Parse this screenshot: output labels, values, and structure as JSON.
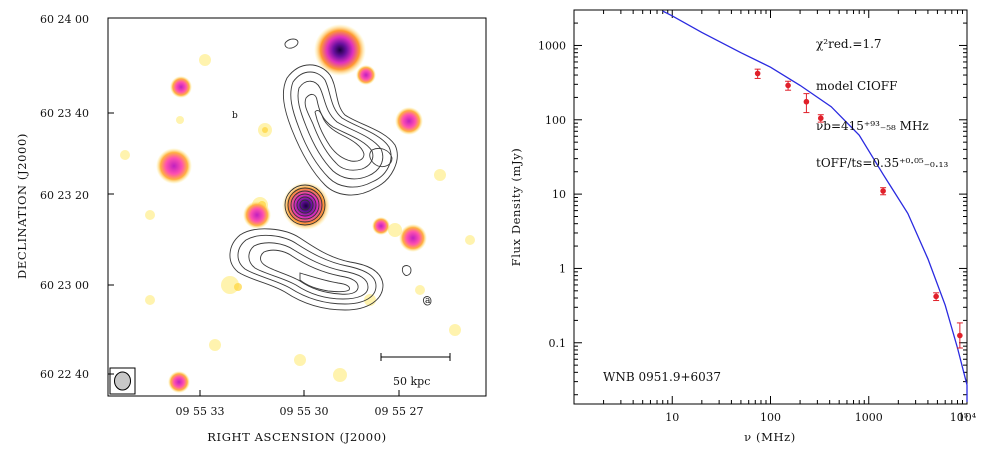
{
  "left_panel": {
    "xlabel": "RIGHT ASCENSION  (J2000)",
    "ylabel": "DECLINATION  (J2000)",
    "x_ticks": [
      "09 55 33",
      "09 55 30",
      "09 55 27"
    ],
    "y_ticks": [
      "60 24 00",
      "60 23 40",
      "60 23 20",
      "60 23 00",
      "60 22 40"
    ],
    "scalebar_label": "50 kpc",
    "component_labels": [
      "b",
      "a"
    ]
  },
  "chart_data": {
    "type": "scatter",
    "xscale": "log",
    "yscale": "log",
    "xlim": [
      1,
      10000
    ],
    "ylim": [
      0.015,
      3000
    ],
    "xlabel": "ν (MHz)",
    "ylabel": "Flux Density  (mJy)",
    "x_ticks": [
      "10",
      "100",
      "1000",
      "10⁴",
      "10⁵"
    ],
    "y_ticks": [
      "1000",
      "100",
      "10",
      "1",
      "0.1"
    ],
    "y_tick_values": [
      1000,
      100,
      10,
      1,
      0.1
    ],
    "x_tick_values": [
      10,
      100,
      1000,
      10000,
      100000
    ],
    "annotations": {
      "chi": "χ²red.=1.7",
      "model": "model CIOFF",
      "nu_b": "νb=415⁺⁹³₋₅₈ MHz",
      "toff": "tOFF/ts=0.35⁺⁰·⁰⁵₋₀.₁₃",
      "source": "WNB 0951.9+6037"
    },
    "series": [
      {
        "color": "#e0202a",
        "x": [
          74,
          151,
          232,
          325,
          1400,
          4850,
          8460
        ],
        "y": [
          420,
          290,
          175,
          105,
          11,
          0.42,
          0.125
        ],
        "yerr_low": [
          60,
          40,
          50,
          12,
          1.2,
          0.05,
          0.04
        ],
        "yerr_high": [
          60,
          40,
          50,
          12,
          1.2,
          0.05,
          0.06
        ]
      }
    ],
    "model_curve": {
      "color": "#2a2ae0",
      "x": [
        8,
        10,
        20,
        50,
        100,
        200,
        415,
        800,
        1400,
        2500,
        4000,
        6000,
        8000,
        10000,
        11500
      ],
      "y": [
        2900,
        2500,
        1500,
        800,
        510,
        290,
        150,
        62,
        18.5,
        5.5,
        1.35,
        0.32,
        0.085,
        0.027,
        0.016
      ]
    }
  }
}
